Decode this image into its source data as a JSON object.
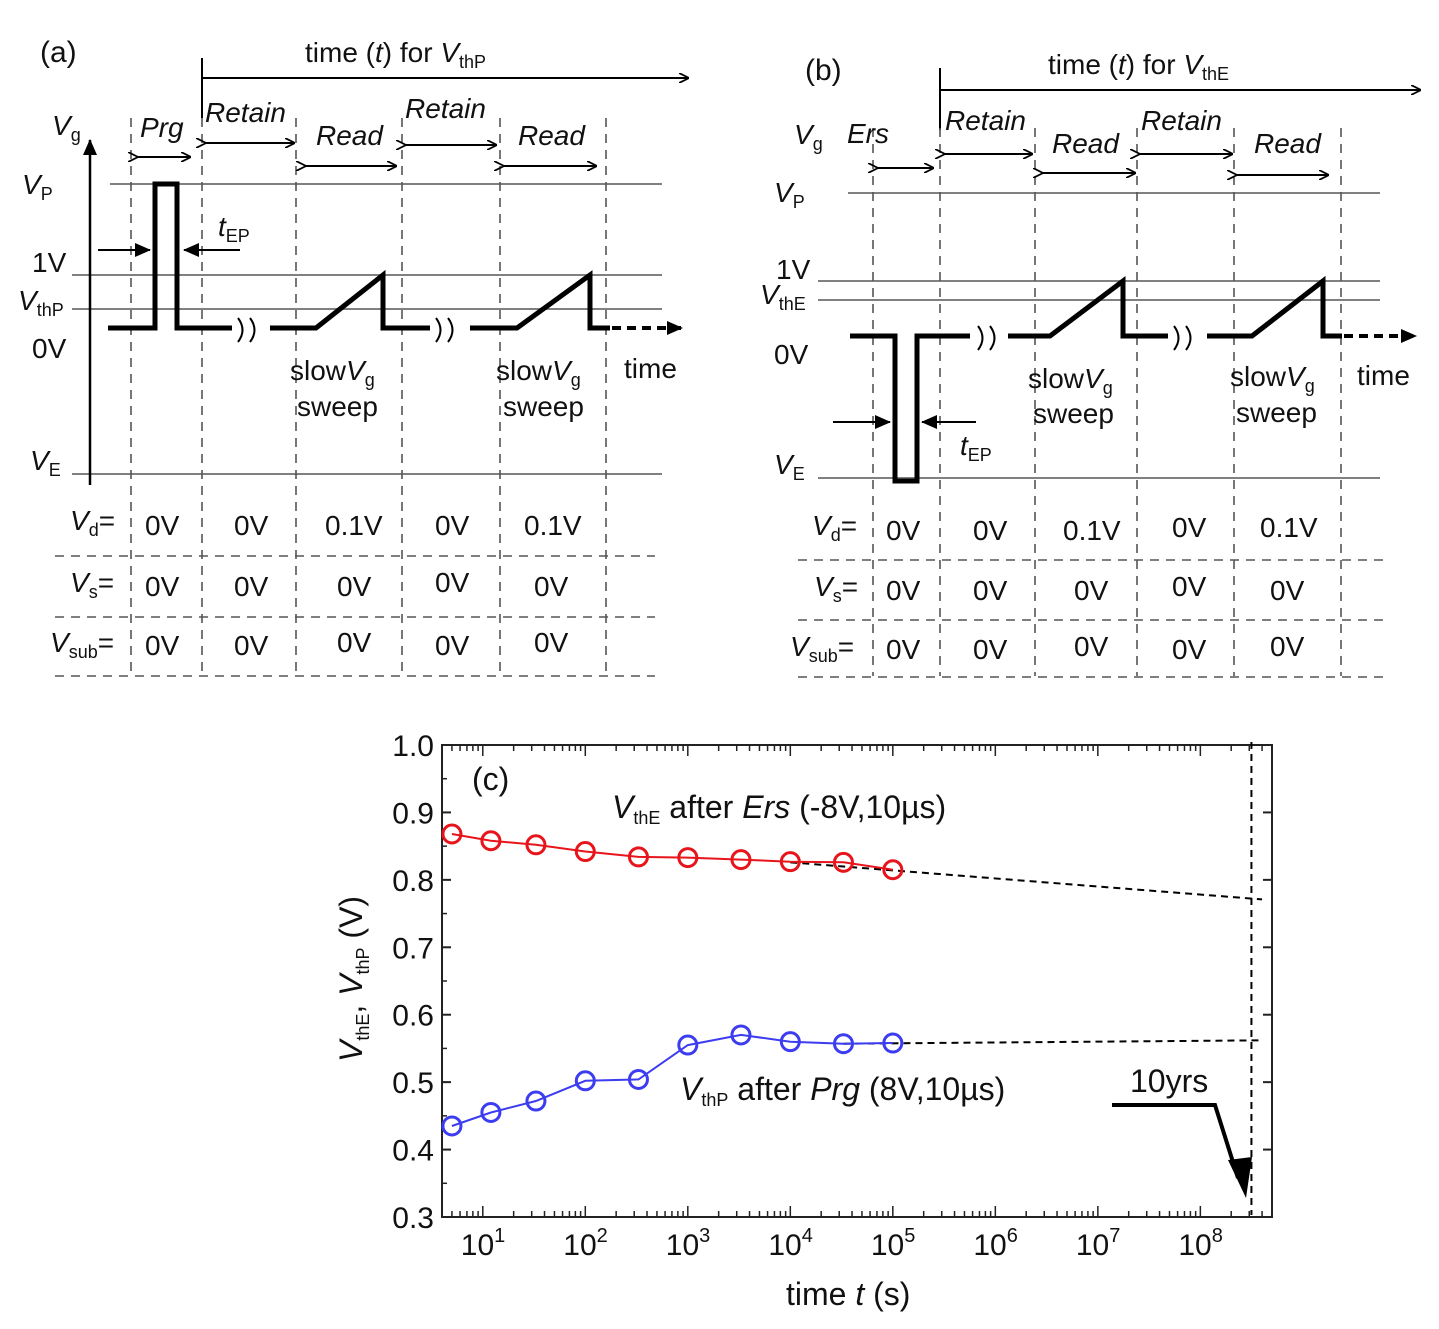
{
  "panel_a": {
    "label": "(a)",
    "time_axis": {
      "prefix": "time (",
      "t": "t",
      "mid": ") for ",
      "V": "V",
      "sub": "thP"
    },
    "phases": [
      "Prg",
      "Retain",
      "Read",
      "Retain",
      "Read"
    ],
    "levels": [
      {
        "V": "V",
        "sub": "g"
      },
      {
        "V": "V",
        "sub": "P"
      },
      {
        "text": "1V"
      },
      {
        "V": "V",
        "sub": "thP"
      },
      {
        "text": "0V"
      },
      {
        "V": "V",
        "sub": "E"
      }
    ],
    "tep": {
      "t": "t",
      "sub": "EP"
    },
    "sweep": {
      "line1": "slow",
      "V": "V",
      "sub": "g",
      "line2": "sweep"
    },
    "time_label": "time",
    "rows": [
      {
        "V": "V",
        "sub": "d",
        "eq": "=",
        "values": [
          "0V",
          "0V",
          "0.1V",
          "0V",
          "0.1V"
        ]
      },
      {
        "V": "V",
        "sub": "s",
        "eq": "=",
        "values": [
          "0V",
          "0V",
          "0V",
          "0V",
          "0V"
        ]
      },
      {
        "V": "V",
        "sub": "sub",
        "eq": "=",
        "values": [
          "0V",
          "0V",
          "0V",
          "0V",
          "0V"
        ]
      }
    ]
  },
  "panel_b": {
    "label": "(b)",
    "time_axis": {
      "prefix": "time (",
      "t": "t",
      "mid": ") for ",
      "V": "V",
      "sub": "thE"
    },
    "phases": [
      "Ers",
      "Retain",
      "Read",
      "Retain",
      "Read"
    ],
    "levels": [
      {
        "V": "V",
        "sub": "g"
      },
      {
        "V": "V",
        "sub": "P"
      },
      {
        "text": "1V"
      },
      {
        "V": "V",
        "sub": "thE"
      },
      {
        "text": "0V"
      },
      {
        "V": "V",
        "sub": "E"
      }
    ],
    "tep": {
      "t": "t",
      "sub": "EP"
    },
    "sweep": {
      "line1": "slow",
      "V": "V",
      "sub": "g",
      "line2": "sweep"
    },
    "time_label": "time",
    "rows": [
      {
        "V": "V",
        "sub": "d",
        "eq": "=",
        "values": [
          "0V",
          "0V",
          "0.1V",
          "0V",
          "0.1V"
        ]
      },
      {
        "V": "V",
        "sub": "s",
        "eq": "=",
        "values": [
          "0V",
          "0V",
          "0V",
          "0V",
          "0V"
        ]
      },
      {
        "V": "V",
        "sub": "sub",
        "eq": "=",
        "values": [
          "0V",
          "0V",
          "0V",
          "0V",
          "0V"
        ]
      }
    ]
  },
  "chart_data": {
    "type": "scatter",
    "panel_label": "(c)",
    "x_scale": "log",
    "xlim": [
      4,
      500000000
    ],
    "ylim": [
      0.3,
      1.0
    ],
    "yticks": [
      "0.3",
      "0.4",
      "0.5",
      "0.6",
      "0.7",
      "0.8",
      "0.9",
      "1.0"
    ],
    "xticks": [
      {
        "base": "10",
        "exp": "1"
      },
      {
        "base": "10",
        "exp": "2"
      },
      {
        "base": "10",
        "exp": "3"
      },
      {
        "base": "10",
        "exp": "4"
      },
      {
        "base": "10",
        "exp": "5"
      },
      {
        "base": "10",
        "exp": "6"
      },
      {
        "base": "10",
        "exp": "7"
      },
      {
        "base": "10",
        "exp": "8"
      }
    ],
    "xlabel": {
      "pre": "time ",
      "t": "t",
      "post": " (s)"
    },
    "ylabel": {
      "V1": "V",
      "s1": "thE",
      "sep": ", ",
      "V2": "V",
      "s2": "thP",
      "post": " (V)"
    },
    "series": [
      {
        "name": "VthE",
        "color": "#e8141b",
        "x": [
          5,
          12,
          33,
          100,
          330,
          1000,
          3300,
          10000,
          33000,
          100000
        ],
        "y": [
          0.868,
          0.858,
          0.852,
          0.842,
          0.834,
          0.833,
          0.83,
          0.827,
          0.826,
          0.815
        ],
        "label": {
          "V": "V",
          "sub": "thE",
          "mid": " after ",
          "op": "Ers",
          "post": " (-8V,10µs)"
        },
        "extrapolation": {
          "x": [
            10000,
            400000000
          ],
          "y": [
            0.826,
            0.771
          ]
        }
      },
      {
        "name": "VthP",
        "color": "#3c3cf0",
        "x": [
          5,
          12,
          33,
          100,
          330,
          1000,
          3300,
          10000,
          33000,
          100000
        ],
        "y": [
          0.435,
          0.455,
          0.472,
          0.502,
          0.504,
          0.555,
          0.57,
          0.56,
          0.557,
          0.558
        ],
        "label": {
          "V": "V",
          "sub": "thP",
          "mid": " after ",
          "op": "Prg",
          "post": " (8V,10µs)"
        },
        "extrapolation": {
          "x": [
            33000,
            400000000
          ],
          "y": [
            0.557,
            0.562
          ]
        }
      }
    ],
    "marker_line": {
      "x": 315000000,
      "label": "10yrs"
    }
  }
}
